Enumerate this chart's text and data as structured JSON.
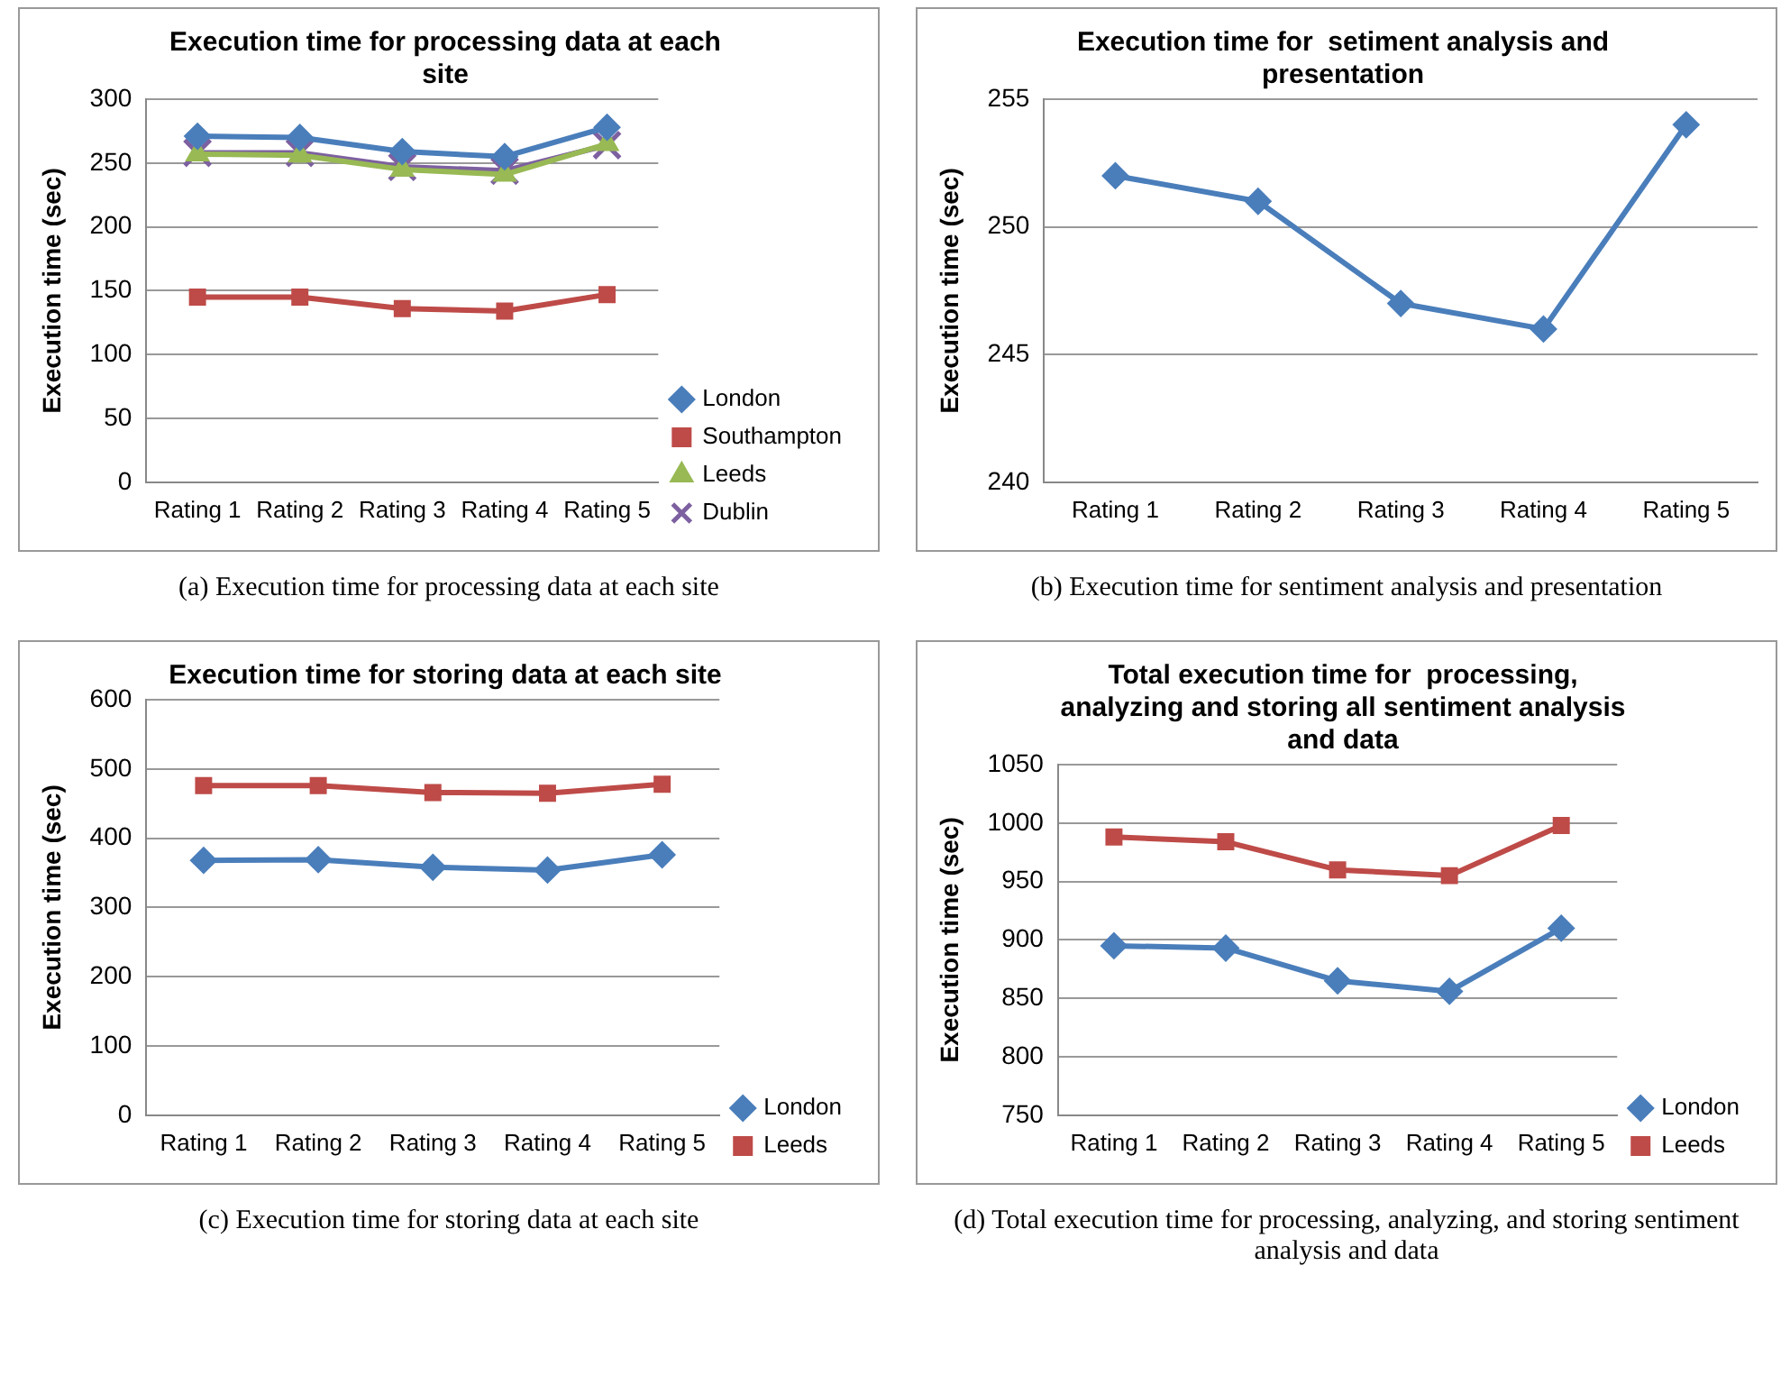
{
  "chart_data": [
    {
      "type": "line",
      "title": "Execution time for processing data at each site",
      "ylabel": "Execution time (sec)",
      "categories": [
        "Rating 1",
        "Rating 2",
        "Rating 3",
        "Rating 4",
        "Rating 5"
      ],
      "series": [
        {
          "name": "London",
          "color": "#4a7ebb",
          "marker": "diamond",
          "values": [
            271,
            270,
            259,
            255,
            278
          ]
        },
        {
          "name": "Southampton",
          "color": "#be4b48",
          "marker": "square",
          "values": [
            145,
            145,
            136,
            134,
            147
          ]
        },
        {
          "name": "Leeds",
          "color": "#98b954",
          "marker": "triangle",
          "values": [
            257,
            256,
            245,
            241,
            265
          ]
        },
        {
          "name": "Dublin",
          "color": "#7d60a0",
          "marker": "cross",
          "values": [
            258,
            258,
            247,
            244,
            264
          ]
        }
      ],
      "ylim": [
        0,
        300
      ],
      "yticks": [
        0,
        50,
        100,
        150,
        200,
        250,
        300
      ],
      "grid": "y",
      "legend": "bottom right",
      "line_style": "solid",
      "annotations": [
        "(a) Execution time for processing  data at each site"
      ]
    },
    {
      "type": "line",
      "title": "Execution time for  setiment analysis and presentation",
      "ylabel": "Execution time (sec)",
      "categories": [
        "Rating 1",
        "Rating 2",
        "Rating 3",
        "Rating 4",
        "Rating 5"
      ],
      "series": [
        {
          "color": "#4a7ebb",
          "marker": "diamond",
          "values": [
            252,
            251,
            247,
            246,
            254
          ]
        }
      ],
      "ylim": [
        240,
        255
      ],
      "yticks": [
        240,
        245,
        250,
        255
      ],
      "grid": "y",
      "legend": false,
      "line_style": "solid",
      "annotations": [
        "(b) Execution time for sentiment analysis and presentation"
      ]
    },
    {
      "type": "line",
      "title": "Execution time for storing data at each site",
      "ylabel": "Execution time (sec)",
      "categories": [
        "Rating 1",
        "Rating 2",
        "Rating 3",
        "Rating 4",
        "Rating 5"
      ],
      "series": [
        {
          "name": "London",
          "color": "#4a7ebb",
          "marker": "diamond",
          "values": [
            368,
            369,
            358,
            354,
            376
          ]
        },
        {
          "name": "Leeds",
          "color": "#be4b48",
          "marker": "square",
          "values": [
            476,
            476,
            466,
            465,
            478
          ]
        }
      ],
      "ylim": [
        0,
        600
      ],
      "yticks": [
        0,
        100,
        200,
        300,
        400,
        500,
        600
      ],
      "grid": "y",
      "legend": "bottom right",
      "line_style": "solid",
      "annotations": [
        "(c) Execution time for storing data at each site"
      ]
    },
    {
      "type": "line",
      "title": "Total execution time for  processing, analyzing and storing all sentiment analysis and data",
      "ylabel": "Execution time (sec)",
      "categories": [
        "Rating 1",
        "Rating 2",
        "Rating 3",
        "Rating 4",
        "Rating 5"
      ],
      "series": [
        {
          "name": "London",
          "color": "#4a7ebb",
          "marker": "diamond",
          "values": [
            895,
            893,
            865,
            856,
            910
          ]
        },
        {
          "name": "Leeds",
          "color": "#be4b48",
          "marker": "square",
          "values": [
            988,
            984,
            960,
            955,
            998
          ]
        }
      ],
      "ylim": [
        750,
        1050
      ],
      "yticks": [
        750,
        800,
        850,
        900,
        950,
        1000,
        1050
      ],
      "grid": "y",
      "legend": "bottom right",
      "line_style": "solid",
      "annotations": [
        "(d) Total execution time for processing, analyzing, and storing sentiment analysis and data"
      ]
    }
  ]
}
